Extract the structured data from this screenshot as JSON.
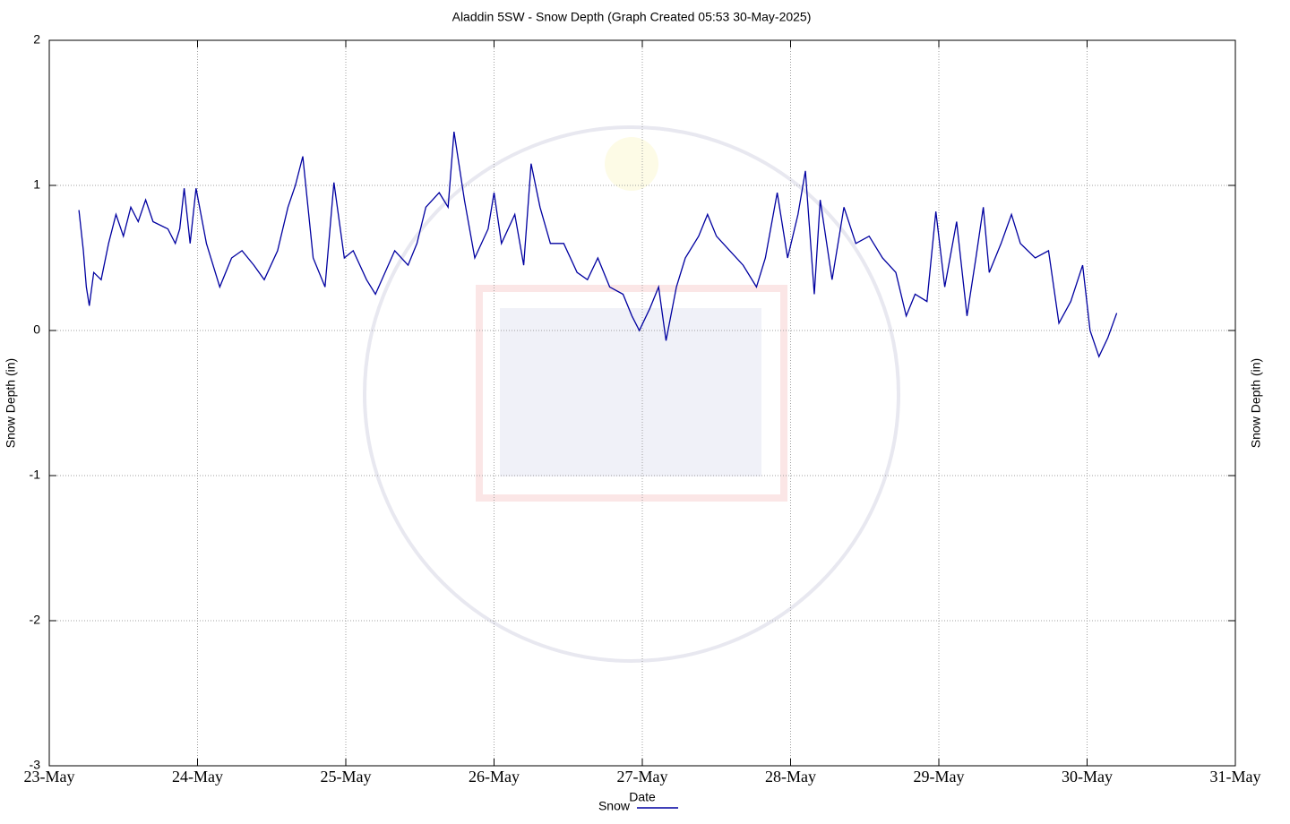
{
  "chart_data": {
    "type": "line",
    "title": "Aladdin 5SW - Snow Depth (Graph Created 05:53 30-May-2025)",
    "x_label": "Date",
    "y_label": "Snow Depth (in)",
    "xlim": [
      23,
      31
    ],
    "xticks": [
      {
        "value": 23,
        "label": "23-May"
      },
      {
        "value": 24,
        "label": "24-May"
      },
      {
        "value": 25,
        "label": "25-May"
      },
      {
        "value": 26,
        "label": "26-May"
      },
      {
        "value": 27,
        "label": "27-May"
      },
      {
        "value": 28,
        "label": "28-May"
      },
      {
        "value": 29,
        "label": "29-May"
      },
      {
        "value": 30,
        "label": "30-May"
      },
      {
        "value": 31,
        "label": "31-May"
      }
    ],
    "ylim": [
      -3,
      2
    ],
    "yticks": [
      -3,
      -2,
      -1,
      0,
      1,
      2
    ],
    "grid": true,
    "legend": "bottom",
    "series": [
      {
        "name": "Snow",
        "color": "#0000a0",
        "x": [
          23.2,
          23.23,
          23.25,
          23.27,
          23.3,
          23.35,
          23.4,
          23.45,
          23.5,
          23.55,
          23.6,
          23.65,
          23.7,
          23.8,
          23.85,
          23.88,
          23.91,
          23.95,
          23.99,
          24.06,
          24.15,
          24.23,
          24.3,
          24.38,
          24.45,
          24.54,
          24.61,
          24.66,
          24.71,
          24.78,
          24.86,
          24.92,
          24.99,
          25.05,
          25.14,
          25.2,
          25.33,
          25.42,
          25.48,
          25.54,
          25.63,
          25.69,
          25.73,
          25.8,
          25.87,
          25.96,
          26.0,
          26.05,
          26.14,
          26.2,
          26.25,
          26.31,
          26.38,
          26.47,
          26.56,
          26.63,
          26.7,
          26.78,
          26.87,
          26.93,
          26.98,
          27.05,
          27.11,
          27.16,
          27.23,
          27.29,
          27.38,
          27.44,
          27.5,
          27.59,
          27.68,
          27.77,
          27.83,
          27.91,
          27.98,
          28.05,
          28.1,
          28.16,
          28.2,
          28.28,
          28.36,
          28.44,
          28.53,
          28.62,
          28.71,
          28.78,
          28.84,
          28.92,
          28.98,
          29.04,
          29.12,
          29.19,
          29.25,
          29.3,
          29.34,
          29.42,
          29.49,
          29.55,
          29.65,
          29.74,
          29.81,
          29.89,
          29.97,
          30.02,
          30.08,
          30.14,
          30.2
        ],
        "values": [
          0.83,
          0.55,
          0.3,
          0.17,
          0.4,
          0.35,
          0.6,
          0.8,
          0.65,
          0.85,
          0.75,
          0.9,
          0.75,
          0.7,
          0.6,
          0.7,
          0.98,
          0.6,
          0.98,
          0.6,
          0.3,
          0.5,
          0.55,
          0.45,
          0.35,
          0.55,
          0.85,
          1.0,
          1.2,
          0.5,
          0.3,
          1.02,
          0.5,
          0.55,
          0.35,
          0.25,
          0.55,
          0.45,
          0.6,
          0.85,
          0.95,
          0.85,
          1.37,
          0.9,
          0.5,
          0.7,
          0.95,
          0.6,
          0.8,
          0.45,
          1.15,
          0.85,
          0.6,
          0.6,
          0.4,
          0.35,
          0.5,
          0.3,
          0.25,
          0.1,
          0.0,
          0.15,
          0.3,
          -0.07,
          0.3,
          0.5,
          0.65,
          0.8,
          0.65,
          0.55,
          0.45,
          0.3,
          0.5,
          0.95,
          0.5,
          0.8,
          1.1,
          0.25,
          0.9,
          0.35,
          0.85,
          0.6,
          0.65,
          0.5,
          0.4,
          0.1,
          0.25,
          0.2,
          0.82,
          0.3,
          0.75,
          0.1,
          0.5,
          0.85,
          0.4,
          0.6,
          0.8,
          0.6,
          0.5,
          0.55,
          0.05,
          0.2,
          0.45,
          0.0,
          -0.18,
          -0.05,
          0.12
        ]
      }
    ]
  }
}
